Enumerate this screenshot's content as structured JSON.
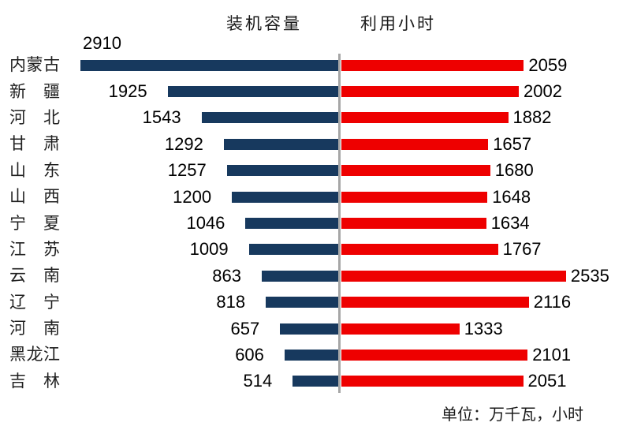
{
  "chart_data": {
    "type": "bar",
    "variant": "tornado",
    "title_left": "装机容量",
    "title_right": "利用小时",
    "unit_note": "单位：万千瓦，小时",
    "legend_position": "top-center",
    "grid": false,
    "categories": [
      "内蒙古",
      "新 疆",
      "河 北",
      "甘 肃",
      "山 东",
      "山 西",
      "宁 夏",
      "江 苏",
      "云 南",
      "辽 宁",
      "河 南",
      "黑龙江",
      "吉 林"
    ],
    "series": [
      {
        "name": "装机容量",
        "side": "left",
        "color": "#17395E",
        "values": [
          2910,
          1925,
          1543,
          1292,
          1257,
          1200,
          1046,
          1009,
          863,
          818,
          657,
          606,
          514
        ]
      },
      {
        "name": "利用小时",
        "side": "right",
        "color": "#EE0000",
        "values": [
          2059,
          2002,
          1882,
          1657,
          1680,
          1648,
          1634,
          1767,
          2535,
          2116,
          1333,
          2101,
          2051
        ]
      }
    ],
    "divider_color": "#A6A6A6",
    "xlim_left": [
      0,
      2910
    ],
    "xlim_right": [
      0,
      2535
    ]
  }
}
